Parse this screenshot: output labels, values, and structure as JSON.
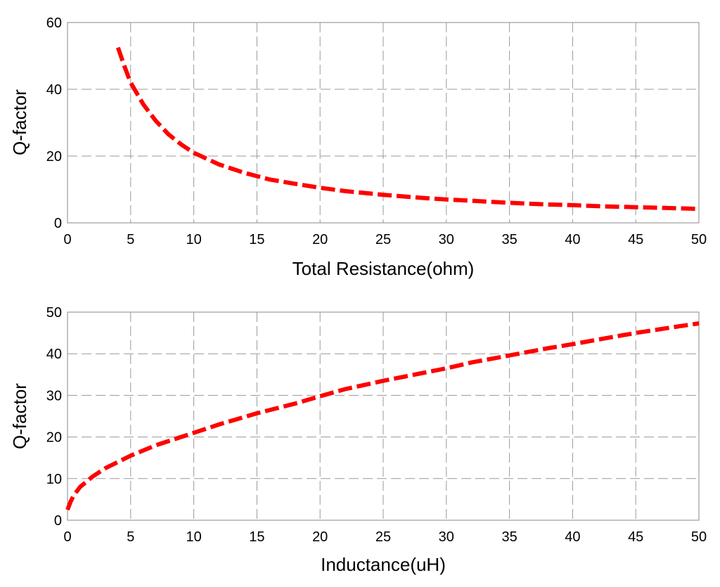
{
  "chart_data": [
    {
      "type": "line",
      "title": "",
      "xlabel": "Total Resistance(ohm)",
      "ylabel": "Q-factor",
      "xlim": [
        0,
        50
      ],
      "ylim": [
        0,
        60
      ],
      "xticks": [
        0,
        5,
        10,
        15,
        20,
        25,
        30,
        35,
        40,
        45,
        50
      ],
      "yticks": [
        0,
        20,
        40,
        60
      ],
      "grid": true,
      "line_style": "dashed",
      "series": [
        {
          "color": "#ff0000",
          "x": [
            4,
            4.5,
            5,
            6,
            7,
            8,
            9,
            10,
            12,
            14,
            16,
            18,
            20,
            22,
            25,
            28,
            30,
            32,
            35,
            38,
            40,
            42,
            45,
            48,
            50
          ],
          "y": [
            52.5,
            47,
            42,
            35.5,
            30.5,
            26.5,
            23.5,
            21,
            17.5,
            15,
            13,
            11.7,
            10.5,
            9.5,
            8.4,
            7.5,
            7,
            6.6,
            6,
            5.5,
            5.3,
            5,
            4.7,
            4.4,
            4.2
          ]
        }
      ]
    },
    {
      "type": "line",
      "title": "",
      "xlabel": "Inductance(uH)",
      "ylabel": "Q-factor",
      "xlim": [
        0,
        50
      ],
      "ylim": [
        0,
        50
      ],
      "xticks": [
        0,
        5,
        10,
        15,
        20,
        25,
        30,
        35,
        40,
        45,
        50
      ],
      "yticks": [
        0,
        10,
        20,
        30,
        40,
        50
      ],
      "grid": true,
      "line_style": "dashed",
      "series": [
        {
          "color": "#ff0000",
          "x": [
            0,
            0.25,
            0.5,
            1,
            2,
            3,
            4,
            5,
            7,
            10,
            12,
            15,
            18,
            20,
            22,
            25,
            28,
            30,
            32,
            35,
            38,
            40,
            42,
            45,
            48,
            50
          ],
          "y": [
            2.5,
            4.5,
            6,
            8,
            10.5,
            12.5,
            14,
            15.5,
            18,
            21,
            23,
            25.7,
            28,
            29.8,
            31.5,
            33.5,
            35.3,
            36.5,
            37.9,
            39.6,
            41.3,
            42.3,
            43.4,
            45,
            46.4,
            47.3
          ]
        }
      ]
    }
  ]
}
